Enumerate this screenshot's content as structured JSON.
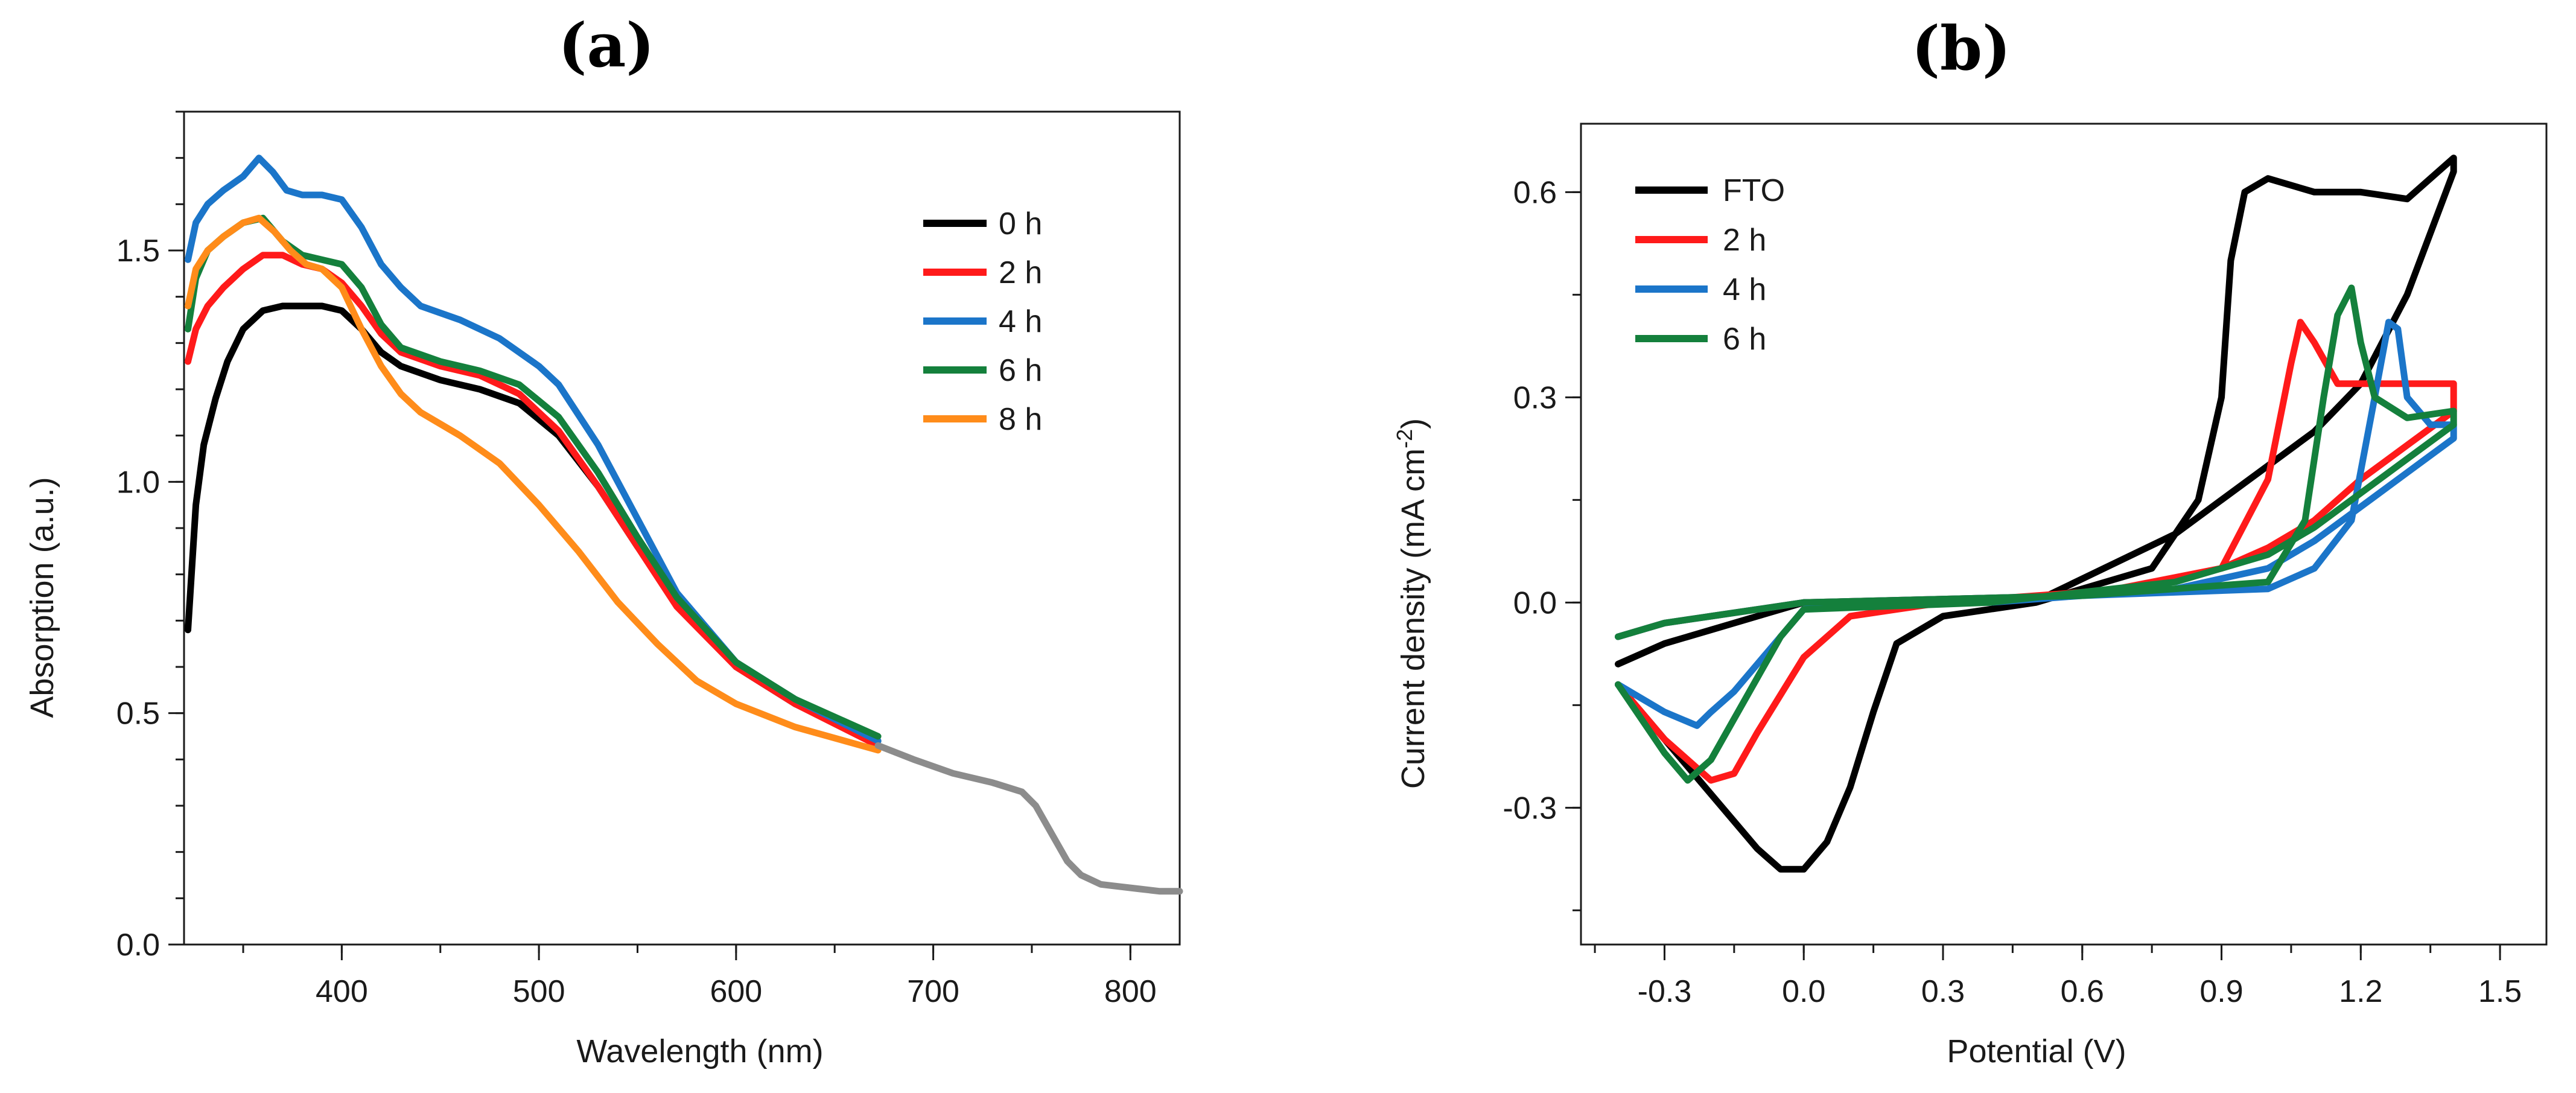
{
  "chart_data": [
    {
      "type": "line",
      "panel_label": "(a)",
      "xlabel": "Wavelength (nm)",
      "ylabel": "Absorption (a.u.)",
      "xlim": [
        320,
        825
      ],
      "ylim": [
        0,
        1.8
      ],
      "xticks": [
        400,
        500,
        600,
        700,
        800
      ],
      "yticks": [
        0.0,
        0.5,
        1.0,
        1.5
      ],
      "xtick_labels": [
        "400",
        "500",
        "600",
        "700",
        "800"
      ],
      "ytick_labels": [
        "0.0",
        "0.5",
        "1.0",
        "1.5"
      ],
      "legend_position": "top-right",
      "series": [
        {
          "name": "0 h",
          "color": "#000000",
          "x": [
            322,
            326,
            330,
            336,
            342,
            350,
            360,
            370,
            380,
            390,
            400,
            410,
            420,
            430,
            450,
            470,
            490,
            510,
            530,
            550,
            570,
            600,
            630,
            672
          ],
          "y": [
            0.68,
            0.95,
            1.08,
            1.18,
            1.26,
            1.33,
            1.37,
            1.38,
            1.38,
            1.38,
            1.37,
            1.33,
            1.28,
            1.25,
            1.22,
            1.2,
            1.17,
            1.1,
            0.99,
            0.86,
            0.74,
            0.6,
            0.52,
            0.44
          ]
        },
        {
          "name": "2 h",
          "color": "#ff1a1a",
          "x": [
            322,
            326,
            332,
            340,
            350,
            360,
            370,
            380,
            390,
            400,
            410,
            420,
            430,
            450,
            470,
            490,
            510,
            530,
            550,
            570,
            600,
            630,
            672
          ],
          "y": [
            1.26,
            1.33,
            1.38,
            1.42,
            1.46,
            1.49,
            1.49,
            1.47,
            1.46,
            1.43,
            1.38,
            1.32,
            1.28,
            1.25,
            1.23,
            1.19,
            1.11,
            0.99,
            0.86,
            0.73,
            0.6,
            0.52,
            0.43
          ]
        },
        {
          "name": "4 h",
          "color": "#1b75c9",
          "x": [
            322,
            326,
            332,
            340,
            350,
            358,
            365,
            372,
            380,
            390,
            400,
            410,
            420,
            430,
            440,
            460,
            480,
            500,
            510,
            530,
            550,
            570,
            600,
            630,
            672
          ],
          "y": [
            1.48,
            1.56,
            1.6,
            1.63,
            1.66,
            1.7,
            1.67,
            1.63,
            1.62,
            1.62,
            1.61,
            1.55,
            1.47,
            1.42,
            1.38,
            1.35,
            1.31,
            1.25,
            1.21,
            1.08,
            0.92,
            0.76,
            0.61,
            0.53,
            0.44
          ]
        },
        {
          "name": "6 h",
          "color": "#14803c",
          "x": [
            322,
            326,
            332,
            340,
            350,
            360,
            370,
            380,
            390,
            400,
            410,
            420,
            430,
            450,
            470,
            490,
            510,
            530,
            550,
            570,
            600,
            630,
            672
          ],
          "y": [
            1.33,
            1.44,
            1.5,
            1.53,
            1.56,
            1.57,
            1.52,
            1.49,
            1.48,
            1.47,
            1.42,
            1.34,
            1.29,
            1.26,
            1.24,
            1.21,
            1.14,
            1.02,
            0.88,
            0.75,
            0.61,
            0.53,
            0.45
          ]
        },
        {
          "name": "8 h",
          "color": "#ff8c1a",
          "x": [
            322,
            326,
            332,
            340,
            350,
            358,
            366,
            374,
            382,
            390,
            400,
            410,
            420,
            430,
            440,
            460,
            480,
            500,
            520,
            540,
            560,
            580,
            600,
            630,
            672
          ],
          "y": [
            1.38,
            1.46,
            1.5,
            1.53,
            1.56,
            1.57,
            1.54,
            1.5,
            1.47,
            1.46,
            1.42,
            1.33,
            1.25,
            1.19,
            1.15,
            1.1,
            1.04,
            0.95,
            0.85,
            0.74,
            0.65,
            0.57,
            0.52,
            0.47,
            0.42
          ]
        },
        {
          "name": "",
          "color": "#8c8c8c",
          "x": [
            672,
            690,
            710,
            730,
            745,
            752,
            760,
            768,
            775,
            785,
            795,
            805,
            815,
            825
          ],
          "y": [
            0.43,
            0.4,
            0.37,
            0.35,
            0.33,
            0.3,
            0.24,
            0.18,
            0.15,
            0.13,
            0.125,
            0.12,
            0.115,
            0.115
          ]
        }
      ]
    },
    {
      "type": "line",
      "panel_label": "(b)",
      "xlabel": "Potential (V)",
      "ylabel": "Current density  (mA cm",
      "ylabel_superscript": "-2",
      "ylabel_suffix": ")",
      "xlim": [
        -0.48,
        1.6
      ],
      "ylim": [
        -0.5,
        0.7
      ],
      "xticks": [
        -0.3,
        0.0,
        0.3,
        0.6,
        0.9,
        1.2,
        1.5
      ],
      "yticks": [
        -0.3,
        0.0,
        0.3,
        0.6
      ],
      "xtick_labels": [
        "-0.3",
        "0.0",
        "0.3",
        "0.6",
        "0.9",
        "1.2",
        "1.5"
      ],
      "ytick_labels": [
        "-0.3",
        "0.0",
        "0.3",
        "0.6"
      ],
      "legend_position": "top-left",
      "series": [
        {
          "name": "FTO",
          "color": "#000000",
          "x": [
            -0.4,
            -0.3,
            -0.2,
            -0.1,
            0.0,
            0.5,
            0.8,
            0.9,
            1.0,
            1.1,
            1.2,
            1.3,
            1.4,
            1.4,
            1.3,
            1.2,
            1.1,
            1.0,
            0.95,
            0.92,
            0.9,
            0.85,
            0.75,
            0.5,
            0.3,
            0.2,
            0.15,
            0.1,
            0.05,
            0.0,
            -0.05,
            -0.1,
            -0.2,
            -0.3,
            -0.4
          ],
          "y": [
            -0.09,
            -0.06,
            -0.04,
            -0.02,
            0.0,
            0.002,
            0.1,
            0.15,
            0.2,
            0.25,
            0.32,
            0.45,
            0.63,
            0.65,
            0.59,
            0.6,
            0.6,
            0.62,
            0.6,
            0.5,
            0.3,
            0.15,
            0.05,
            0.0,
            -0.02,
            -0.06,
            -0.16,
            -0.27,
            -0.35,
            -0.39,
            -0.39,
            -0.36,
            -0.28,
            -0.2,
            -0.12
          ]
        },
        {
          "name": "2 h",
          "color": "#ff1a1a",
          "x": [
            -0.4,
            -0.3,
            -0.2,
            -0.1,
            0.0,
            0.6,
            0.9,
            1.0,
            1.05,
            1.07,
            1.1,
            1.15,
            1.2,
            1.3,
            1.4,
            1.4,
            1.3,
            1.2,
            1.1,
            1.0,
            0.9,
            0.7,
            0.3,
            0.1,
            0.0,
            -0.1,
            -0.15,
            -0.2,
            -0.3,
            -0.4
          ],
          "y": [
            -0.05,
            -0.03,
            -0.02,
            -0.01,
            0.0,
            0.01,
            0.05,
            0.18,
            0.35,
            0.41,
            0.38,
            0.32,
            0.32,
            0.32,
            0.32,
            0.28,
            0.23,
            0.18,
            0.12,
            0.08,
            0.05,
            0.02,
            0.0,
            -0.02,
            -0.08,
            -0.19,
            -0.25,
            -0.26,
            -0.2,
            -0.12
          ]
        },
        {
          "name": "4 h",
          "color": "#1b75c9",
          "x": [
            -0.4,
            -0.3,
            -0.2,
            -0.1,
            0.0,
            0.6,
            1.0,
            1.1,
            1.18,
            1.23,
            1.26,
            1.28,
            1.3,
            1.35,
            1.4,
            1.4,
            1.3,
            1.2,
            1.1,
            1.0,
            0.8,
            0.4,
            0.1,
            0.0,
            -0.05,
            -0.1,
            -0.15,
            -0.2,
            -0.23,
            -0.3,
            -0.4
          ],
          "y": [
            -0.05,
            -0.03,
            -0.02,
            -0.01,
            0.0,
            0.01,
            0.02,
            0.05,
            0.12,
            0.3,
            0.41,
            0.4,
            0.3,
            0.26,
            0.26,
            0.24,
            0.19,
            0.14,
            0.09,
            0.05,
            0.02,
            0.0,
            0.0,
            -0.01,
            -0.05,
            -0.09,
            -0.13,
            -0.16,
            -0.18,
            -0.16,
            -0.12
          ]
        },
        {
          "name": "6 h",
          "color": "#14803c",
          "x": [
            -0.4,
            -0.3,
            -0.2,
            -0.1,
            0.0,
            0.6,
            1.0,
            1.08,
            1.12,
            1.15,
            1.18,
            1.2,
            1.23,
            1.3,
            1.4,
            1.4,
            1.3,
            1.2,
            1.1,
            1.0,
            0.8,
            0.4,
            0.0,
            -0.05,
            -0.1,
            -0.15,
            -0.2,
            -0.25,
            -0.3,
            -0.4
          ],
          "y": [
            -0.05,
            -0.03,
            -0.02,
            -0.01,
            0.0,
            0.01,
            0.03,
            0.12,
            0.3,
            0.42,
            0.46,
            0.38,
            0.3,
            0.27,
            0.28,
            0.26,
            0.21,
            0.16,
            0.11,
            0.07,
            0.03,
            0.0,
            -0.01,
            -0.05,
            -0.11,
            -0.17,
            -0.23,
            -0.26,
            -0.22,
            -0.12
          ]
        }
      ]
    }
  ]
}
